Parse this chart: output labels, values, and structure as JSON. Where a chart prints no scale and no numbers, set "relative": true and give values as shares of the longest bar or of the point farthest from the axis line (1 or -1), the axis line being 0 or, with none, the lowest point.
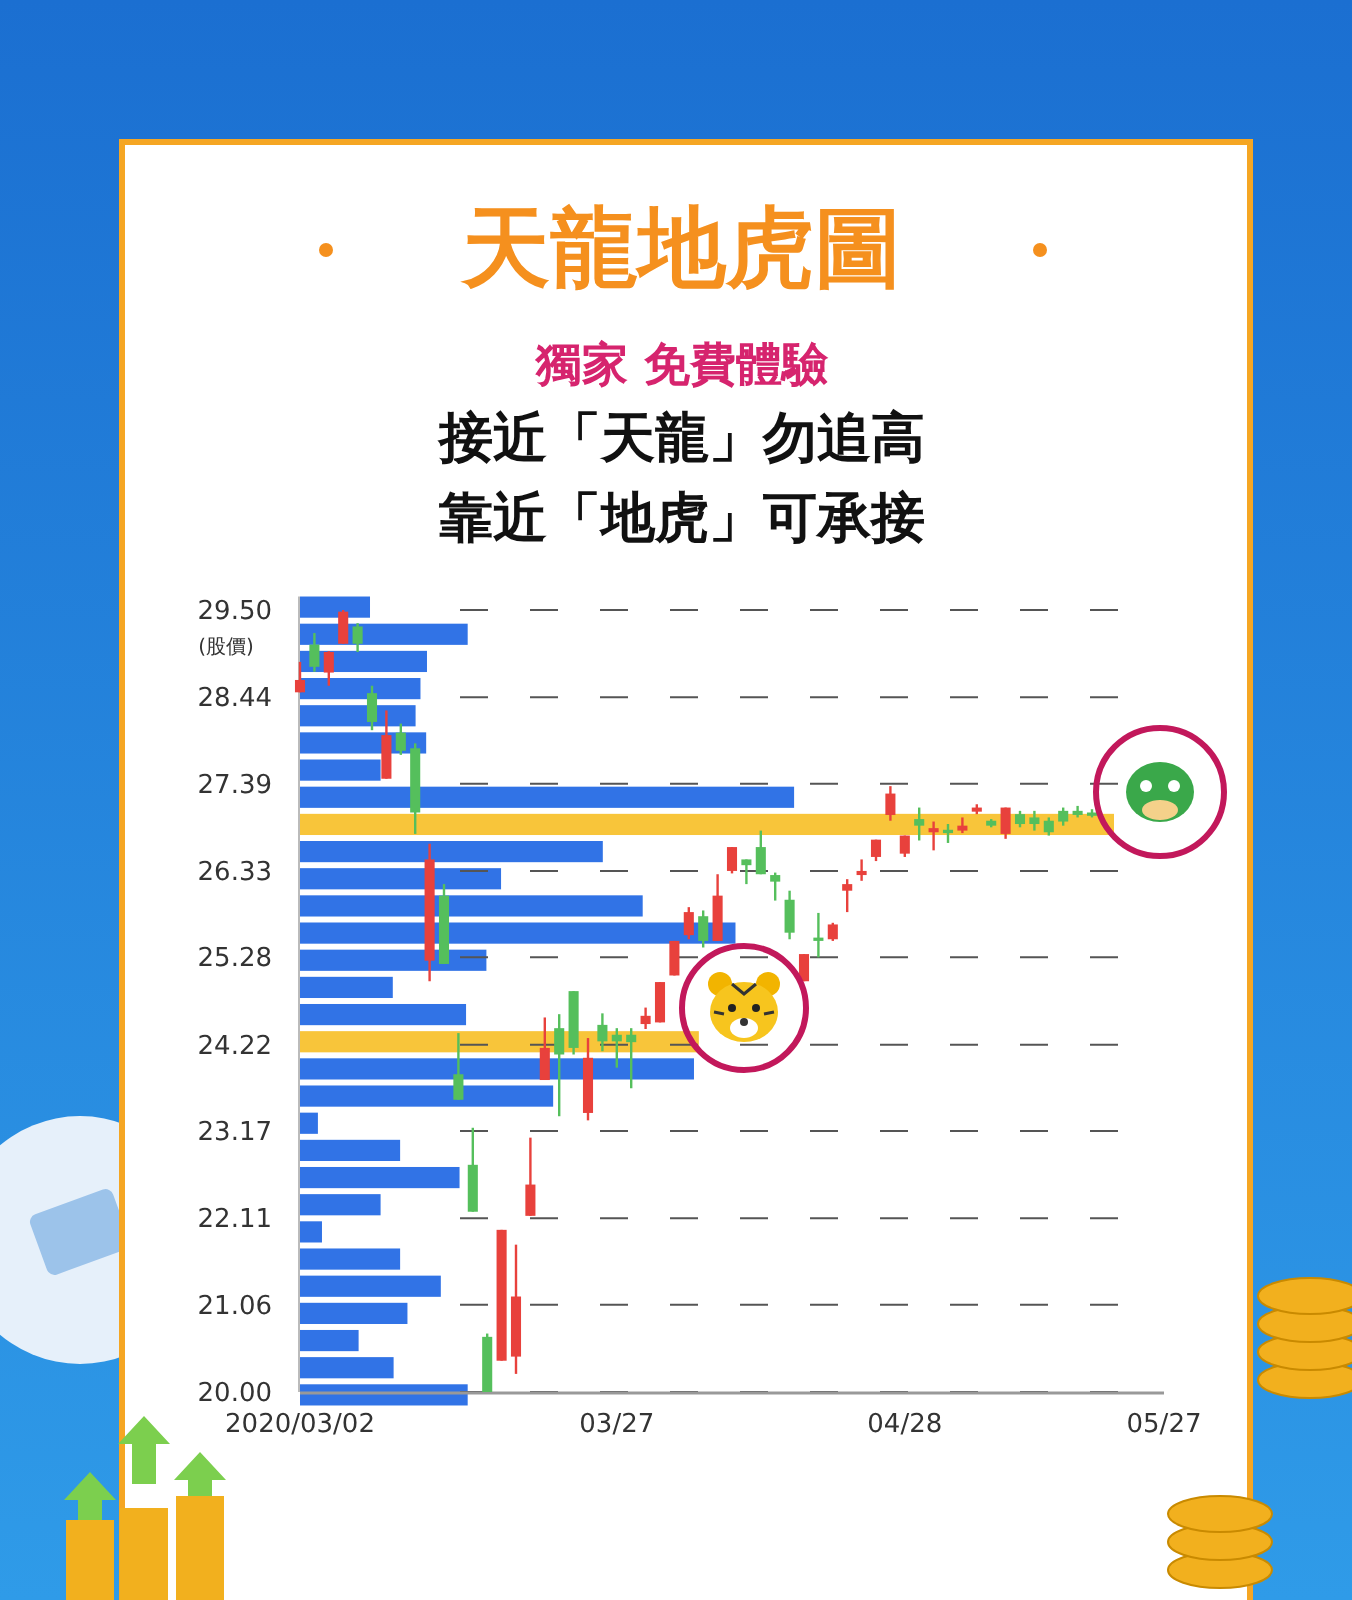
{
  "chart_data": [
    {
      "type": "candlestick",
      "title": "天龍地虎圖",
      "subtitle": "獨家 免費體驗",
      "annotations": [
        "接近「天龍」勿追高",
        "靠近「地虎」可承接"
      ],
      "ylabel": "(股價)",
      "categories": [
        "2020/03/02",
        null,
        null,
        null,
        null,
        null,
        null,
        null,
        null,
        null,
        null,
        null,
        null,
        null,
        null,
        null,
        null,
        null,
        null,
        null,
        null,
        null,
        "03/27",
        null,
        null,
        null,
        null,
        null,
        null,
        null,
        null,
        null,
        null,
        null,
        null,
        null,
        null,
        null,
        null,
        null,
        null,
        null,
        "04/28",
        null,
        null,
        null,
        null,
        null,
        null,
        null,
        null,
        null,
        null,
        null,
        null,
        null,
        null,
        null,
        null,
        null,
        "05/27"
      ],
      "ohlc": [
        [
          28.5,
          28.87,
          28.5,
          28.65
        ],
        [
          29.08,
          29.22,
          28.75,
          28.81
        ],
        [
          28.74,
          29.0,
          28.58,
          28.99
        ],
        [
          29.09,
          29.5,
          29.09,
          29.48
        ],
        [
          29.3,
          29.34,
          28.99,
          29.09
        ],
        [
          28.49,
          28.58,
          28.04,
          28.14
        ],
        [
          27.45,
          28.28,
          27.45,
          27.98
        ],
        [
          28.01,
          28.12,
          27.74,
          27.79
        ],
        [
          27.82,
          27.88,
          26.78,
          27.04
        ],
        [
          25.24,
          26.66,
          24.99,
          26.47
        ],
        [
          26.03,
          26.17,
          25.2,
          25.2
        ],
        [
          23.86,
          24.36,
          23.55,
          23.55
        ],
        [
          22.76,
          23.21,
          22.19,
          22.19
        ],
        [
          20.67,
          20.71,
          20.0,
          20.0
        ],
        [
          20.38,
          21.97,
          20.38,
          21.97
        ],
        [
          20.43,
          21.79,
          20.22,
          21.16
        ],
        [
          22.14,
          23.09,
          22.14,
          22.52
        ],
        [
          23.79,
          24.55,
          23.79,
          24.18
        ],
        [
          24.42,
          24.59,
          23.35,
          24.1
        ],
        [
          24.87,
          24.87,
          24.1,
          24.18
        ],
        [
          23.39,
          24.3,
          23.3,
          24.06
        ],
        [
          24.46,
          24.6,
          24.14,
          24.26
        ],
        [
          24.34,
          24.42,
          23.94,
          24.26
        ],
        [
          24.34,
          24.42,
          23.69,
          24.25
        ],
        [
          24.47,
          24.67,
          24.41,
          24.57
        ],
        [
          24.49,
          24.98,
          24.49,
          24.98
        ],
        [
          25.06,
          25.48,
          25.06,
          25.48
        ],
        [
          25.55,
          25.89,
          25.5,
          25.83
        ],
        [
          25.78,
          25.85,
          25.4,
          25.48
        ],
        [
          25.48,
          26.29,
          25.48,
          26.03
        ],
        [
          26.33,
          26.62,
          26.3,
          26.62
        ],
        [
          26.47,
          26.47,
          26.17,
          26.4
        ],
        [
          26.62,
          26.82,
          26.29,
          26.29
        ],
        [
          26.28,
          26.31,
          25.97,
          26.2
        ],
        [
          25.98,
          26.09,
          25.5,
          25.58
        ],
        [
          24.99,
          25.32,
          24.99,
          25.32
        ],
        [
          25.52,
          25.82,
          25.28,
          25.48
        ],
        [
          25.5,
          25.7,
          25.48,
          25.68
        ],
        [
          26.09,
          26.23,
          25.83,
          26.17
        ],
        [
          26.28,
          26.47,
          26.21,
          26.33
        ],
        [
          26.5,
          26.71,
          26.45,
          26.71
        ],
        [
          27.01,
          27.36,
          26.94,
          27.27
        ],
        [
          26.54,
          26.76,
          26.5,
          26.76
        ],
        [
          26.96,
          27.1,
          26.7,
          26.88
        ],
        [
          26.8,
          26.93,
          26.58,
          26.85
        ],
        [
          26.83,
          26.9,
          26.67,
          26.79
        ],
        [
          26.82,
          26.98,
          26.79,
          26.88
        ],
        [
          27.05,
          27.14,
          27.02,
          27.1
        ],
        [
          26.94,
          26.96,
          26.86,
          26.88
        ],
        [
          26.78,
          27.1,
          26.72,
          27.1
        ],
        [
          27.02,
          27.06,
          26.86,
          26.9
        ],
        [
          26.98,
          27.06,
          26.82,
          26.9
        ],
        [
          26.94,
          26.98,
          26.76,
          26.8
        ],
        [
          27.06,
          27.1,
          26.88,
          26.93
        ],
        [
          27.06,
          27.12,
          26.98,
          27.01
        ],
        [
          27.04,
          27.08,
          26.98,
          27.0
        ],
        null,
        null,
        null,
        null,
        null
      ],
      "ylim": [
        20,
        29.5
      ],
      "yticks": [
        {
          "value": 29.5,
          "label": "29.50"
        },
        28.44,
        27.39,
        26.33,
        25.28,
        24.22,
        23.17,
        22.11,
        21.06,
        {
          "value": 20,
          "label": "20.00"
        }
      ],
      "grid": "y"
    },
    {
      "type": "bar",
      "orientation": "horizontal",
      "relative": true,
      "categories": [
        null,
        null,
        null,
        null,
        null,
        null,
        null,
        null,
        null,
        null,
        null,
        null,
        null,
        null,
        null,
        null,
        null,
        null,
        null,
        null,
        null,
        null,
        null,
        null,
        null,
        null,
        null,
        null,
        null,
        null
      ],
      "values": [
        0.086,
        0.206,
        0.156,
        0.148,
        0.142,
        0.155,
        0.099,
        0.607,
        1,
        0.372,
        0.247,
        0.421,
        0.535,
        0.229,
        0.114,
        0.204,
        0.49,
        0.484,
        0.311,
        0.022,
        0.123,
        0.196,
        0.099,
        0.027,
        0.123,
        0.173,
        0.132,
        0.072,
        0.115,
        0.206
      ],
      "colors": [
        "#3173e6",
        "#3173e6",
        "#3173e6",
        "#3173e6",
        "#3173e6",
        "#3173e6",
        "#3173e6",
        "#3173e6",
        "#f8c53a",
        "#3173e6",
        "#3173e6",
        "#3173e6",
        "#3173e6",
        "#3173e6",
        "#3173e6",
        "#3173e6",
        "#f8c53a",
        "#3173e6",
        "#3173e6",
        "#3173e6",
        "#3173e6",
        "#3173e6",
        "#3173e6",
        "#3173e6",
        "#3173e6",
        "#3173e6",
        "#3173e6",
        "#3173e6",
        "#3173e6",
        "#3173e6"
      ]
    }
  ]
}
